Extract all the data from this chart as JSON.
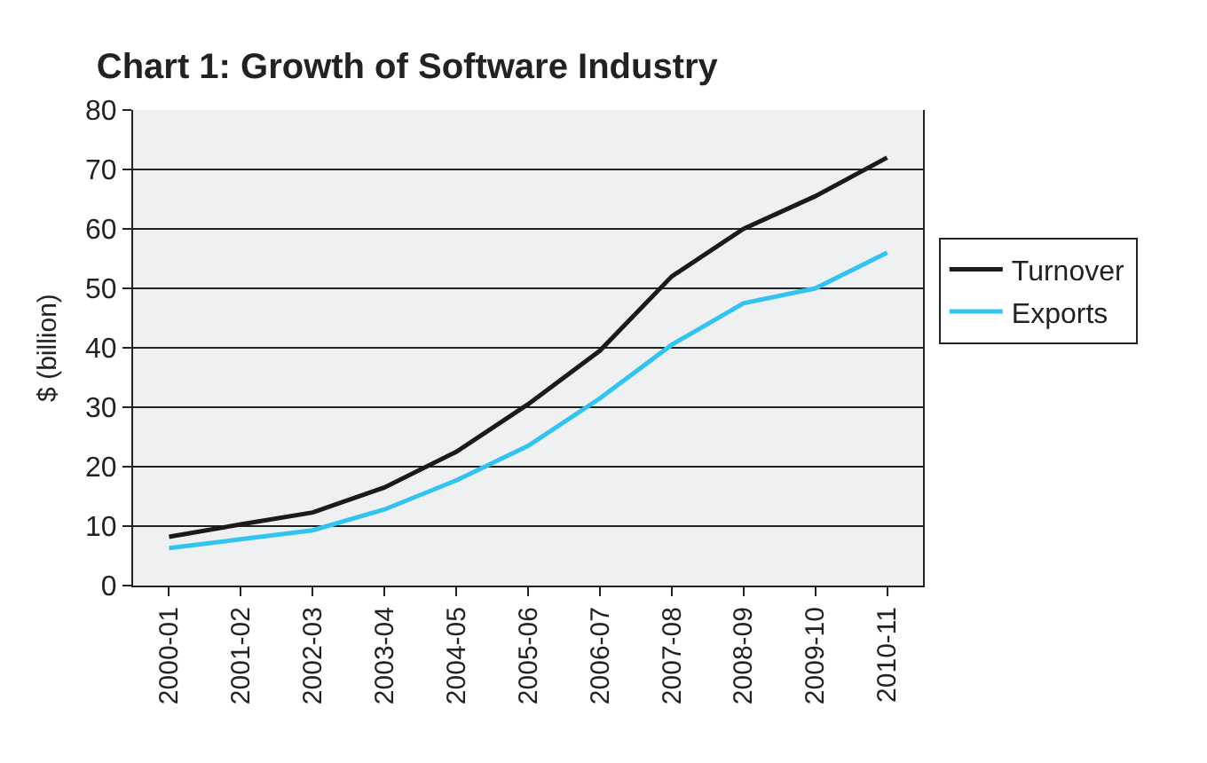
{
  "chart_data": {
    "type": "line",
    "title": "Chart 1: Growth of Software Industry",
    "ylabel": "$ (billion)",
    "categories": [
      "2000-01",
      "2001-02",
      "2002-03",
      "2003-04",
      "2004-05",
      "2005-06",
      "2006-07",
      "2007-08",
      "2008-09",
      "2009-10",
      "2010-11"
    ],
    "series": [
      {
        "name": "Turnover",
        "color": "#1a1a1a",
        "values": [
          8.2,
          10.3,
          12.3,
          16.5,
          22.5,
          30.5,
          39.5,
          52,
          60,
          65.5,
          72
        ]
      },
      {
        "name": "Exports",
        "color": "#33c3f0",
        "values": [
          6.3,
          7.8,
          9.3,
          12.8,
          17.7,
          23.5,
          31.5,
          40.5,
          47.5,
          50,
          56
        ]
      }
    ],
    "ylim": [
      0,
      80
    ],
    "yticks": [
      0,
      10,
      20,
      30,
      40,
      50,
      60,
      70,
      80
    ],
    "grid": "y",
    "legend": "right",
    "marker": "none",
    "line_style": "solid"
  }
}
